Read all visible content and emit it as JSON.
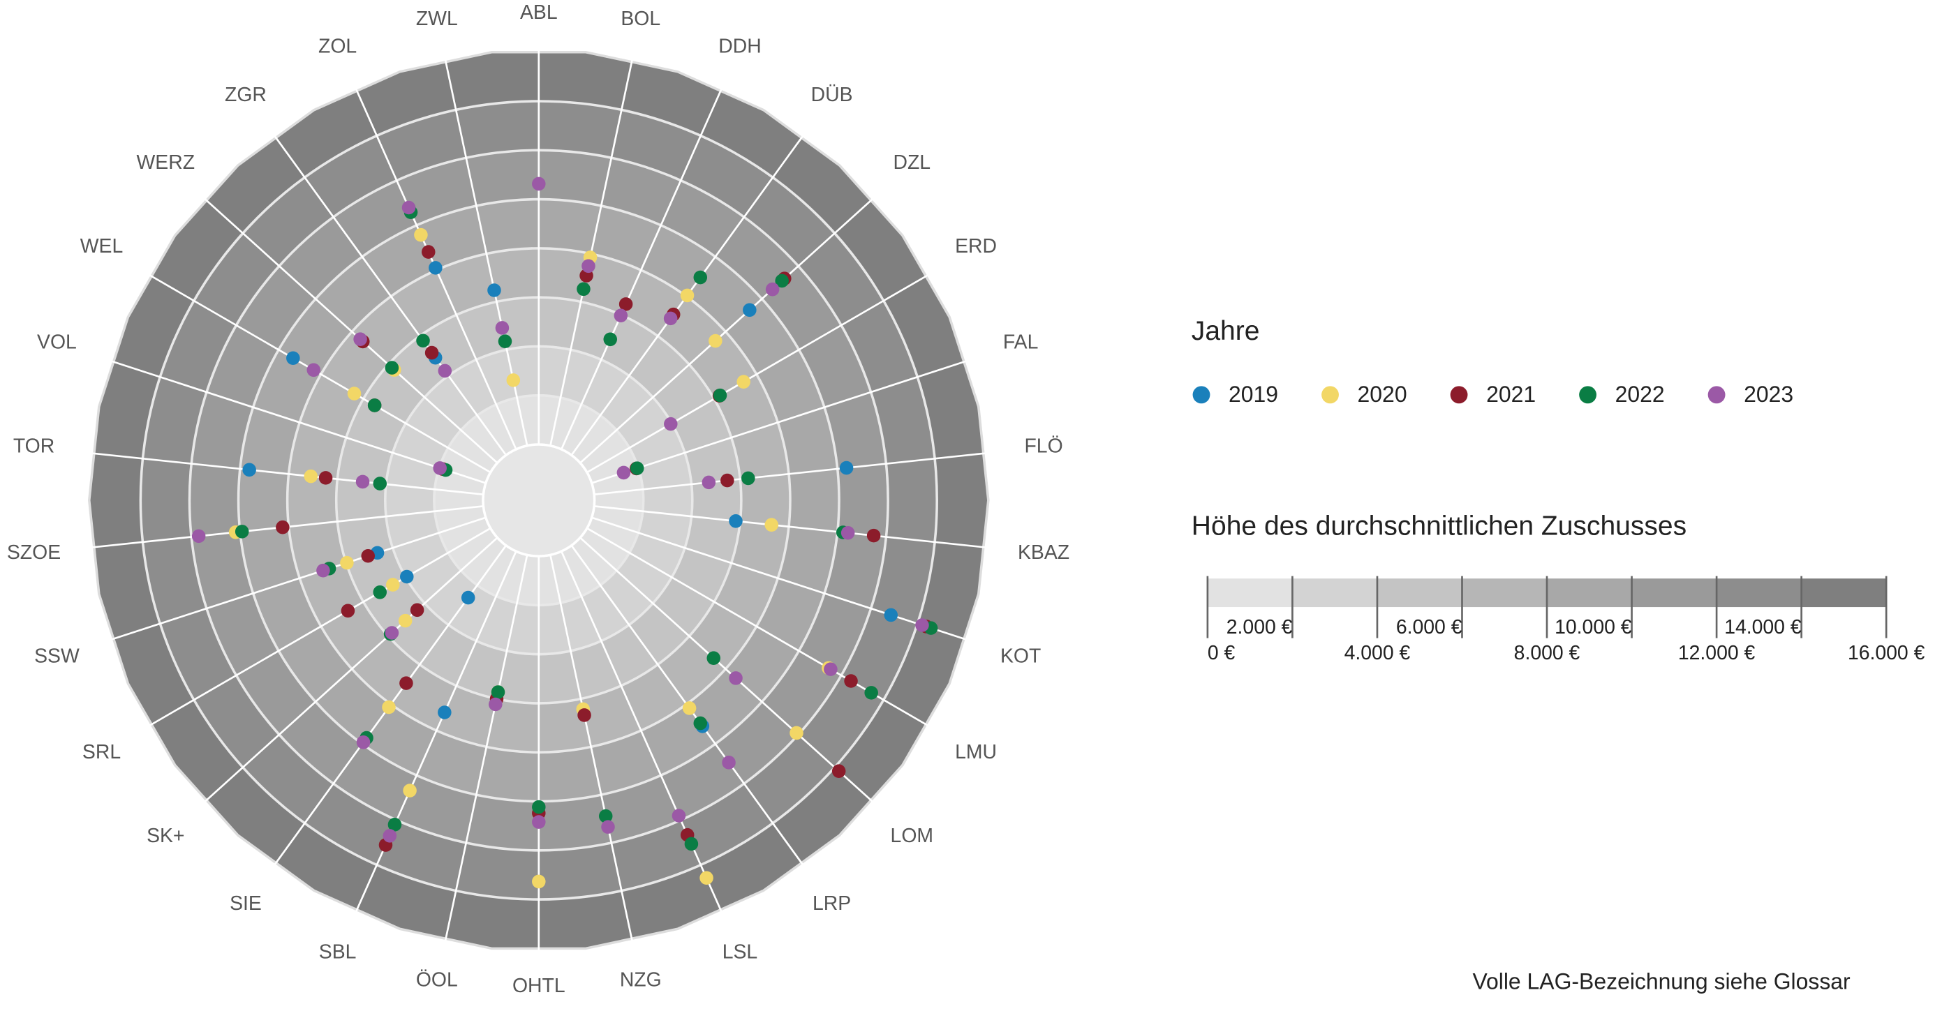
{
  "chart_data": {
    "type": "polar-dot",
    "categories": [
      "ABL",
      "BOL",
      "DDH",
      "DÜB",
      "DZL",
      "ERD",
      "FAL",
      "FLÖ",
      "KBAZ",
      "KOT",
      "LMU",
      "LOM",
      "LRP",
      "LSL",
      "NZG",
      "OHTL",
      "ÖOL",
      "SBL",
      "SIE",
      "SK+",
      "SRL",
      "SSW",
      "SZOE",
      "TOR",
      "VOL",
      "WEL",
      "WERZ",
      "ZGR",
      "ZOL",
      "ZWL"
    ],
    "legend_title": "Jahre",
    "series": [
      {
        "name": "2019",
        "color": "#1a80bb",
        "values": [
          null,
          null,
          null,
          null,
          9320,
          null,
          null,
          10370,
          5820,
          12860,
          null,
          null,
          9110,
          null,
          null,
          null,
          null,
          7190,
          2630,
          null,
          3950,
          4660,
          null,
          9620,
          null,
          9320,
          null,
          4910,
          8100,
          6480
        ]
      },
      {
        "name": "2020",
        "color": "#f2d766",
        "values": [
          null,
          7850,
          null,
          8050,
          7440,
          7390,
          null,
          null,
          7290,
          null,
          11400,
          11900,
          8200,
          14580,
          6430,
          13270,
          5720,
          10680,
          8150,
          5060,
          4610,
          5970,
          10180,
          7090,
          null,
          6430,
          5670,
          null,
          9570,
          2730
        ]
      },
      {
        "name": "2021",
        "color": "#8c1c2b",
        "values": [
          null,
          7090,
          6480,
          7090,
          11240,
          6250,
          1920,
          5470,
          11490,
          14380,
          12460,
          14230,
          null,
          12660,
          6680,
          10480,
          6000,
          13110,
          6940,
          4410,
          6730,
          5060,
          8250,
          6480,
          1850,
          5470,
          7400,
          5160,
          8810,
          null
        ]
      },
      {
        "name": "2022",
        "color": "#0a7d44",
        "values": [
          null,
          6530,
          4910,
          8960,
          11100,
          6280,
          1950,
          6330,
          10230,
          14580,
          13420,
          7340,
          8960,
          13060,
          10890,
          10230,
          5720,
          12200,
          9700,
          5870,
          5220,
          6730,
          9920,
          4250,
          1720,
          5470,
          5800,
          5770,
          10580,
          4350
        ]
      },
      {
        "name": "2023",
        "color": "#9b59a6",
        "values": [
          10630,
          7490,
          5970,
          6890,
          10580,
          3950,
          1370,
          4710,
          10430,
          14200,
          11500,
          8560,
          10940,
          11800,
          11340,
          10840,
          6230,
          12700,
          9920,
          5800,
          null,
          6990,
          11700,
          4960,
          1970,
          8350,
          7540,
          4250,
          10790,
          4910
        ]
      }
    ],
    "rlim": [
      0,
      16000
    ],
    "scale": {
      "title": "Höhe des durchschnittlichen Zuschusses",
      "ticks": [
        {
          "value": 0,
          "label": "0 €"
        },
        {
          "value": 2000,
          "label": "2.000 €"
        },
        {
          "value": 4000,
          "label": "4.000 €"
        },
        {
          "value": 6000,
          "label": "6.000 €"
        },
        {
          "value": 8000,
          "label": "8.000 €"
        },
        {
          "value": 10000,
          "label": "10.000 €"
        },
        {
          "value": 12000,
          "label": "12.000 €"
        },
        {
          "value": 14000,
          "label": "14.000 €"
        },
        {
          "value": 16000,
          "label": "16.000 €"
        }
      ],
      "colors": [
        "#e2e2e2",
        "#d3d3d3",
        "#c4c4c4",
        "#b6b6b6",
        "#a8a8a8",
        "#9a9a9a",
        "#8d8d8d",
        "#7f7f7f"
      ]
    },
    "footnote": "Volle LAG-Bezeichnung siehe Glossar"
  }
}
